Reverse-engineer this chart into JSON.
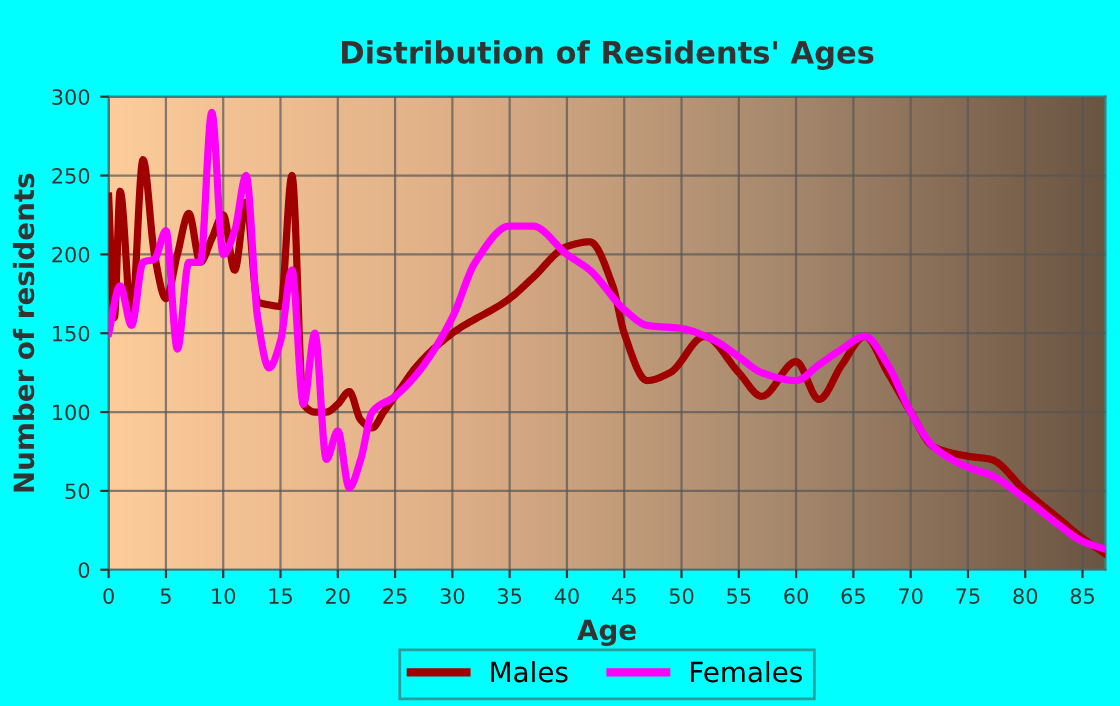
{
  "chart_data": {
    "type": "line",
    "title": "Distribution of Residents' Ages",
    "xlabel": "Age",
    "ylabel": "Number of residents",
    "xlim": [
      0,
      87
    ],
    "xticks": [
      0,
      5,
      10,
      15,
      20,
      25,
      30,
      35,
      40,
      45,
      50,
      55,
      60,
      65,
      70,
      75,
      80,
      85
    ],
    "ylim": [
      0,
      300
    ],
    "yticks": [
      0,
      50,
      100,
      150,
      200,
      250,
      300
    ],
    "grid": true,
    "legend": "bottom",
    "marker": "none",
    "line_style": "solid",
    "series": [
      {
        "name": "Males",
        "color": "#a00000",
        "x": [
          0,
          0.5,
          1,
          2,
          3,
          4,
          5,
          6,
          7,
          8,
          9,
          10,
          11,
          12,
          13,
          14,
          15,
          16,
          17,
          18,
          19,
          20,
          21,
          22,
          23,
          24,
          25,
          27,
          30,
          35,
          37,
          40,
          42,
          44,
          45,
          47,
          49,
          52,
          55,
          57,
          60,
          62,
          64,
          66,
          68,
          70,
          72,
          75,
          77,
          80,
          83,
          85,
          87
        ],
        "values": [
          237,
          160,
          240,
          160,
          260,
          200,
          172,
          200,
          226,
          195,
          210,
          225,
          190,
          233,
          170,
          168,
          167,
          250,
          105,
          100,
          100,
          105,
          113,
          95,
          90,
          100,
          110,
          130,
          150,
          172,
          185,
          205,
          208,
          180,
          150,
          120,
          125,
          148,
          125,
          110,
          132,
          108,
          130,
          148,
          125,
          100,
          78,
          72,
          70,
          50,
          32,
          20,
          10
        ]
      },
      {
        "name": "Females",
        "color": "#ff00ff",
        "x": [
          0,
          1,
          2,
          3,
          4,
          5,
          6,
          7,
          8,
          9,
          10,
          11,
          12,
          13,
          14,
          15,
          16,
          17,
          18,
          19,
          20,
          21,
          22,
          23,
          25,
          27,
          30,
          32,
          35,
          37,
          40,
          42,
          45,
          47,
          50,
          53,
          55,
          57,
          60,
          62,
          64,
          66,
          68,
          70,
          72,
          75,
          77,
          80,
          83,
          85,
          87
        ],
        "values": [
          150,
          180,
          155,
          195,
          197,
          215,
          140,
          195,
          195,
          290,
          200,
          215,
          250,
          160,
          128,
          145,
          190,
          105,
          150,
          70,
          88,
          52,
          70,
          100,
          110,
          125,
          160,
          195,
          218,
          218,
          200,
          190,
          165,
          155,
          153,
          145,
          135,
          125,
          120,
          130,
          140,
          148,
          130,
          100,
          78,
          65,
          60,
          45,
          28,
          18,
          13
        ]
      }
    ]
  }
}
